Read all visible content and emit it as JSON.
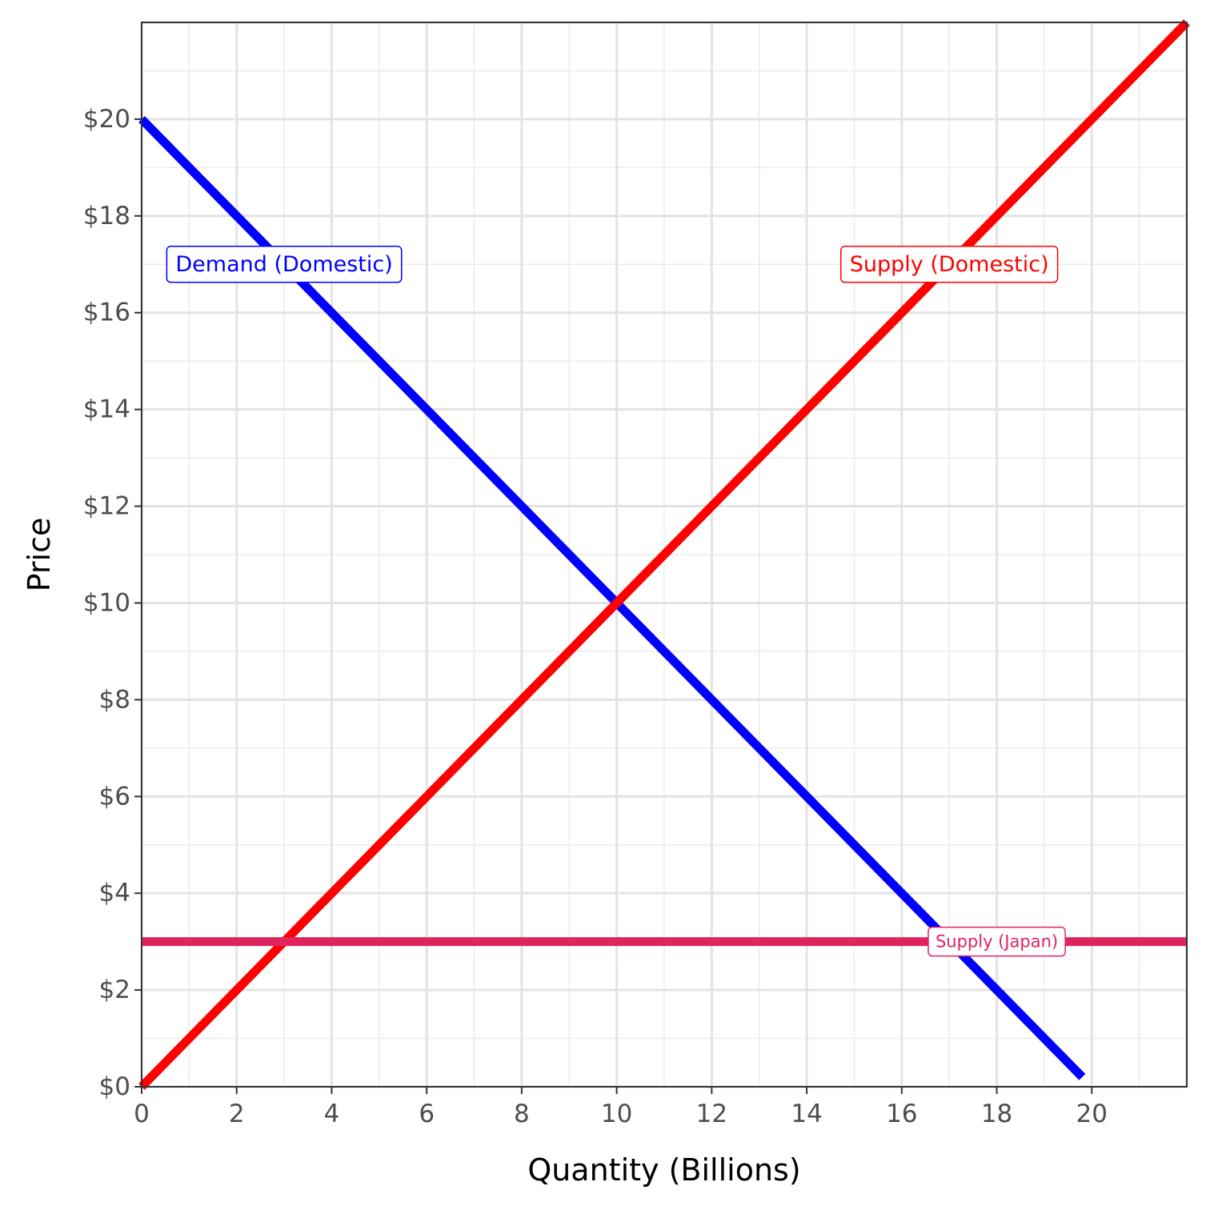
{
  "chart_data": {
    "type": "line",
    "title": "",
    "xlabel": "Quantity (Billions)",
    "ylabel": "Price",
    "xlim": [
      0,
      22
    ],
    "ylim": [
      0,
      22
    ],
    "x_ticks": [
      0,
      2,
      4,
      6,
      8,
      10,
      12,
      14,
      16,
      18,
      20
    ],
    "x_tick_labels": [
      "0",
      "2",
      "4",
      "6",
      "8",
      "10",
      "12",
      "14",
      "16",
      "18",
      "20"
    ],
    "y_ticks": [
      0,
      2,
      4,
      6,
      8,
      10,
      12,
      14,
      16,
      18,
      20
    ],
    "y_tick_labels": [
      "$0",
      "$2",
      "$4",
      "$6",
      "$8",
      "$10",
      "$12",
      "$14",
      "$16",
      "$18",
      "$20"
    ],
    "grid": true,
    "series": [
      {
        "name": "Demand (Domestic)",
        "color": "#0000ff",
        "x": [
          0,
          19.8
        ],
        "y": [
          20,
          0.2
        ]
      },
      {
        "name": "Supply (Domestic)",
        "color": "#ff0000",
        "x": [
          0,
          22
        ],
        "y": [
          0,
          22
        ]
      },
      {
        "name": "Supply (Japan)",
        "color": "#e0245e",
        "x": [
          0,
          22
        ],
        "y": [
          3,
          3
        ]
      }
    ],
    "annotations": [
      {
        "text": "Demand (Domestic)",
        "x": 3,
        "y": 17,
        "color": "#0000ff"
      },
      {
        "text": "Supply (Domestic)",
        "x": 17,
        "y": 17,
        "color": "#ff0000"
      },
      {
        "text": "Supply (Japan)",
        "x": 18,
        "y": 3,
        "color": "#e0245e"
      }
    ]
  }
}
